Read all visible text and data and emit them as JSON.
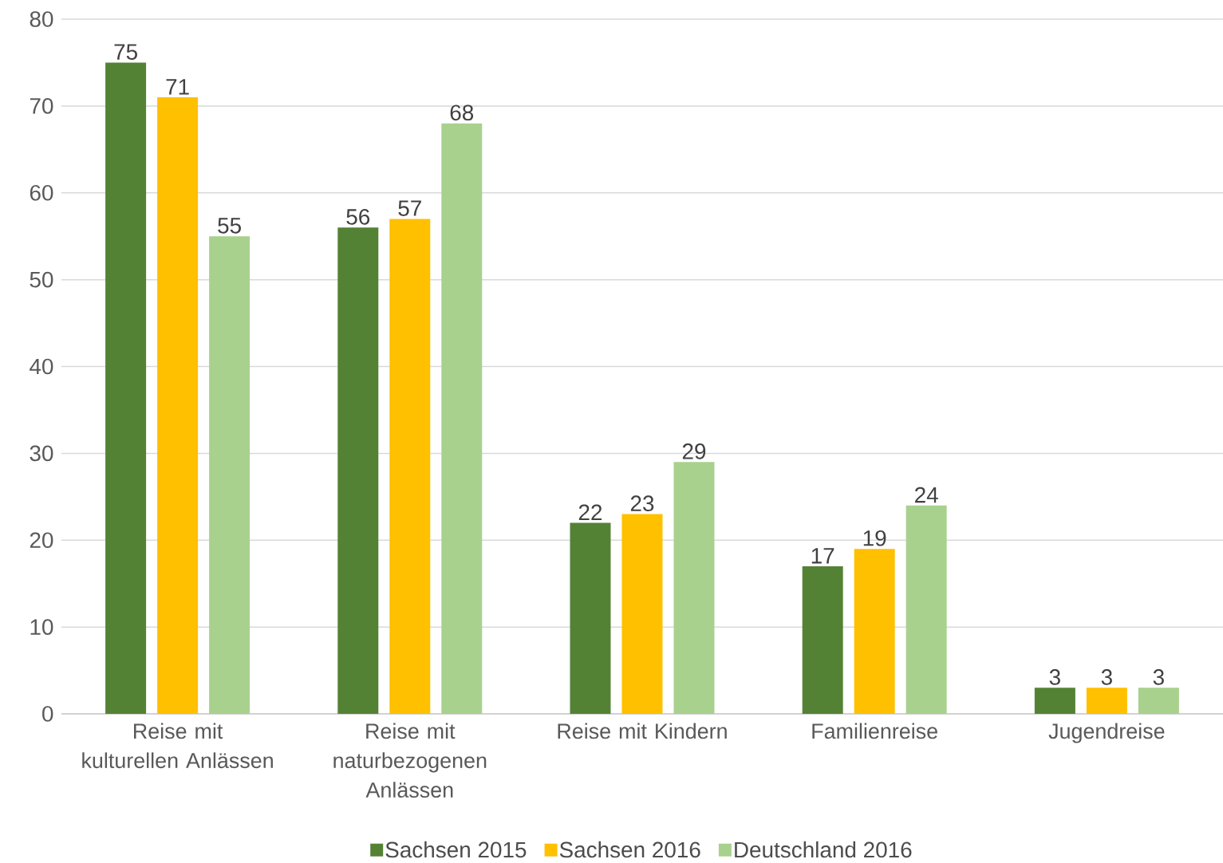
{
  "chart_data": {
    "type": "bar",
    "categories": [
      "Reise mit kulturellen Anlässen",
      "Reise mit naturbezogenen Anlässen",
      "Reise mit Kindern",
      "Familienreise",
      "Jugendreise"
    ],
    "series": [
      {
        "name": "Sachsen 2015",
        "color": "#548235",
        "values": [
          75,
          56,
          22,
          17,
          3
        ]
      },
      {
        "name": "Sachsen 2016",
        "color": "#ffc000",
        "values": [
          71,
          57,
          23,
          19,
          3
        ]
      },
      {
        "name": "Deutschland 2016",
        "color": "#a9d18e",
        "values": [
          55,
          68,
          29,
          24,
          3
        ]
      }
    ],
    "ylim": [
      0,
      80
    ],
    "yticks": [
      0,
      10,
      20,
      30,
      40,
      50,
      60,
      70,
      80
    ],
    "grid": "y",
    "legend": "bottom",
    "data_labels": true
  }
}
